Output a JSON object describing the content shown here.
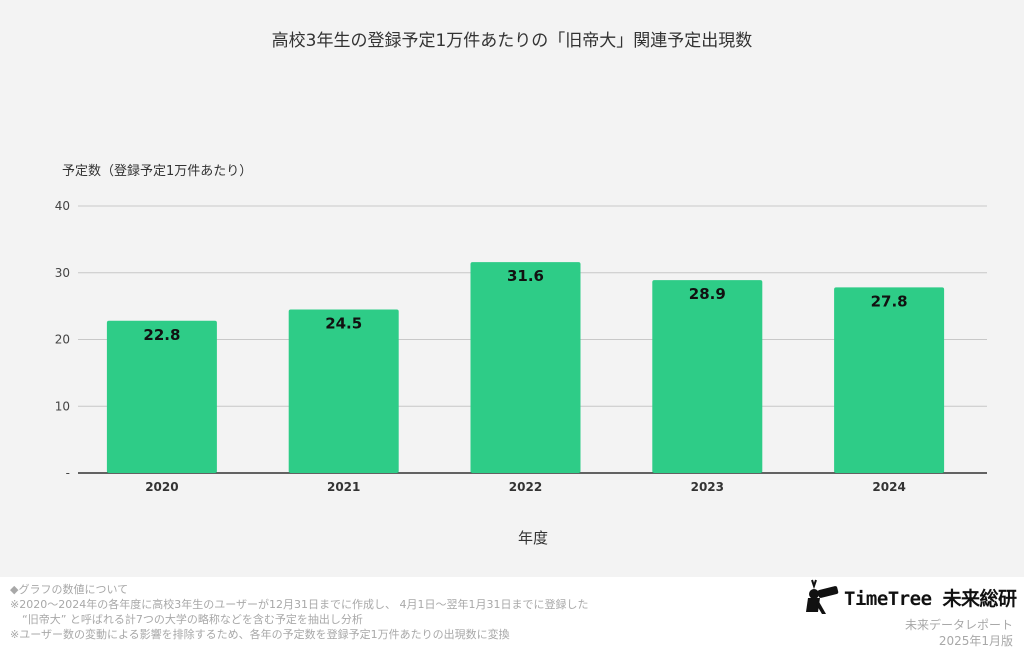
{
  "chart_data": {
    "type": "bar",
    "title": "高校3年生の登録予定1万件あたりの「旧帝大」関連予定出現数",
    "xlabel": "年度",
    "ylabel": "予定数（登録予定1万件あたり）",
    "categories": [
      "2020",
      "2021",
      "2022",
      "2023",
      "2024"
    ],
    "values": [
      22.8,
      24.5,
      31.6,
      28.9,
      27.8
    ],
    "data_labels": [
      "22.8",
      "24.5",
      "31.6",
      "28.9",
      "27.8"
    ],
    "ylim": [
      0,
      40
    ],
    "y_ticks": [
      0,
      10,
      20,
      30,
      40
    ],
    "y_tick_labels": [
      "-",
      "10",
      "20",
      "30",
      "40"
    ],
    "grid": true,
    "bar_color": "#2ecc87"
  },
  "footer": {
    "notes": [
      "◆グラフの数値について",
      "※2020〜2024年の各年度に高校3年生のユーザーが12月31日までに作成し、 4月1日〜翌年1月31日までに登録した",
      "“旧帝大” と呼ばれる計7つの大学の略称などを含む予定を抽出し分析",
      "※ユーザー数の変動による影響を排除するため、各年の予定数を登録予定1万件あたりの出現数に変換"
    ],
    "brand": "TimeTree 未来総研",
    "report_label": "未来データレポート",
    "report_date": "2025年1月版"
  }
}
